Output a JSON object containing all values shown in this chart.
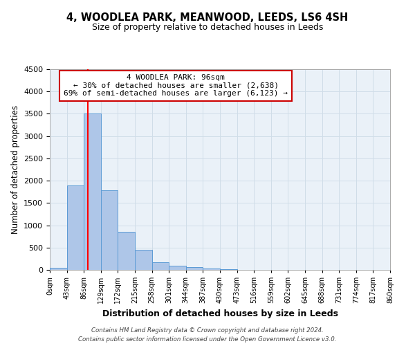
{
  "title": "4, WOODLEA PARK, MEANWOOD, LEEDS, LS6 4SH",
  "subtitle": "Size of property relative to detached houses in Leeds",
  "xlabel": "Distribution of detached houses by size in Leeds",
  "ylabel": "Number of detached properties",
  "bar_values": [
    50,
    1900,
    3500,
    1780,
    850,
    450,
    175,
    90,
    55,
    30,
    10,
    5,
    5,
    5,
    5,
    5,
    5,
    5,
    5,
    5
  ],
  "bin_edges": [
    0,
    43,
    86,
    129,
    172,
    215,
    258,
    301,
    344,
    387,
    430,
    473,
    516,
    559,
    602,
    645,
    688,
    731,
    774,
    817,
    860
  ],
  "tick_labels": [
    "0sqm",
    "43sqm",
    "86sqm",
    "129sqm",
    "172sqm",
    "215sqm",
    "258sqm",
    "301sqm",
    "344sqm",
    "387sqm",
    "430sqm",
    "473sqm",
    "516sqm",
    "559sqm",
    "602sqm",
    "645sqm",
    "688sqm",
    "731sqm",
    "774sqm",
    "817sqm",
    "860sqm"
  ],
  "bar_color": "#aec6e8",
  "bar_edge_color": "#5b9bd5",
  "red_line_x": 96,
  "ylim": [
    0,
    4500
  ],
  "yticks": [
    0,
    500,
    1000,
    1500,
    2000,
    2500,
    3000,
    3500,
    4000,
    4500
  ],
  "annotation_title": "4 WOODLEA PARK: 96sqm",
  "annotation_line1": "← 30% of detached houses are smaller (2,638)",
  "annotation_line2": "69% of semi-detached houses are larger (6,123) →",
  "annotation_box_color": "#ffffff",
  "annotation_box_edge_color": "#cc0000",
  "footer_line1": "Contains HM Land Registry data © Crown copyright and database right 2024.",
  "footer_line2": "Contains public sector information licensed under the Open Government Licence v3.0.",
  "background_color": "#ffffff",
  "grid_color": "#d0dde8",
  "axes_bg_color": "#eaf1f8"
}
